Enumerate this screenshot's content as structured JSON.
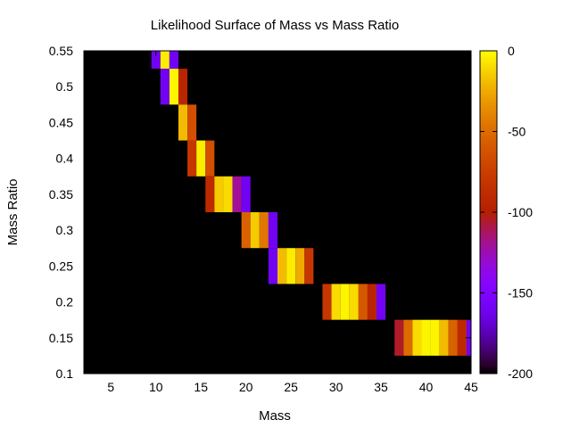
{
  "chart_data": {
    "type": "heatmap",
    "title": "Likelihood Surface of Mass vs Mass Ratio",
    "xlabel": "Mass",
    "ylabel": "Mass Ratio",
    "xlim": [
      2,
      45
    ],
    "ylim": [
      0.1,
      0.55
    ],
    "x_ticks": [
      "5",
      "10",
      "15",
      "20",
      "25",
      "30",
      "35",
      "40",
      "45"
    ],
    "y_ticks": [
      "0.1",
      "0.15",
      "0.2",
      "0.25",
      "0.3",
      "0.35",
      "0.4",
      "0.45",
      "0.5",
      "0.55"
    ],
    "colorbar": {
      "range": [
        -200,
        0
      ],
      "ticks": [
        "0",
        "-50",
        "-100",
        "-150",
        "-200"
      ],
      "colormap": "gnuplot-default-rgbformulae-7-5-15"
    },
    "background_value": -200,
    "cell_size": {
      "mass": 1,
      "ratio": 0.05
    },
    "cells": [
      {
        "ratio": 0.55,
        "mass_values": [
          [
            10,
            -160
          ],
          [
            11,
            -5
          ],
          [
            12,
            -160
          ]
        ]
      },
      {
        "ratio": 0.5,
        "mass_values": [
          [
            11,
            -160
          ],
          [
            12,
            -3
          ],
          [
            13,
            -95
          ]
        ]
      },
      {
        "ratio": 0.45,
        "mass_values": [
          [
            13,
            -20
          ],
          [
            14,
            -65
          ]
        ]
      },
      {
        "ratio": 0.4,
        "mass_values": [
          [
            14,
            -80
          ],
          [
            15,
            -5
          ],
          [
            16,
            -65
          ]
        ]
      },
      {
        "ratio": 0.35,
        "mass_values": [
          [
            16,
            -90
          ],
          [
            17,
            -15
          ],
          [
            18,
            -10
          ],
          [
            19,
            -120
          ],
          [
            20,
            -160
          ]
        ]
      },
      {
        "ratio": 0.3,
        "mass_values": [
          [
            20,
            -55
          ],
          [
            21,
            -15
          ],
          [
            22,
            -45
          ],
          [
            23,
            -160
          ]
        ]
      },
      {
        "ratio": 0.25,
        "mass_values": [
          [
            23,
            -160
          ],
          [
            24,
            -20
          ],
          [
            25,
            -5
          ],
          [
            26,
            -25
          ],
          [
            27,
            -80
          ]
        ]
      },
      {
        "ratio": 0.2,
        "mass_values": [
          [
            29,
            -80
          ],
          [
            30,
            -10
          ],
          [
            31,
            -3
          ],
          [
            32,
            -10
          ],
          [
            33,
            -60
          ],
          [
            34,
            -95
          ],
          [
            35,
            -160
          ]
        ]
      },
      {
        "ratio": 0.15,
        "mass_values": [
          [
            37,
            -105
          ],
          [
            38,
            -50
          ],
          [
            39,
            -10
          ],
          [
            40,
            -3
          ],
          [
            41,
            -3
          ],
          [
            42,
            -20
          ],
          [
            43,
            -55
          ],
          [
            44,
            -90
          ],
          [
            45,
            -160
          ]
        ]
      }
    ]
  }
}
